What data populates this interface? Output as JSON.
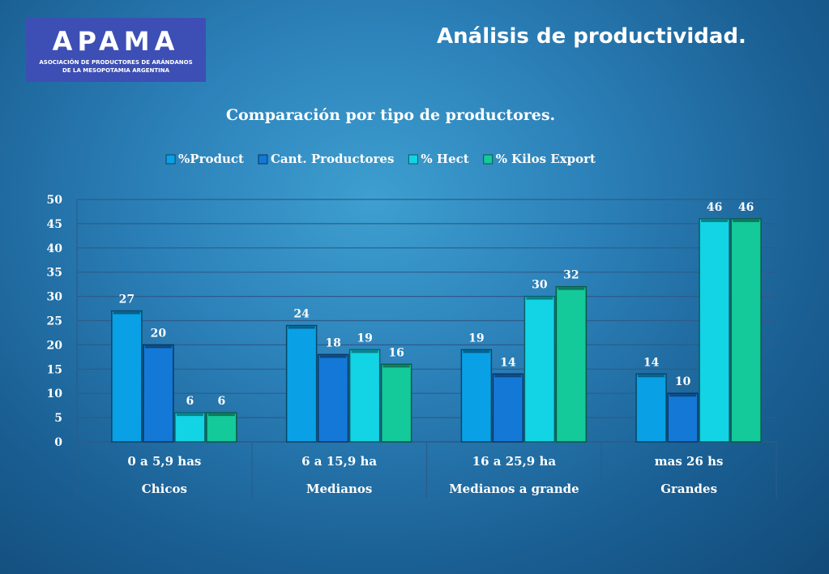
{
  "logo": {
    "word": "APAMA",
    "subtitle_line1": "ASOCIACIÓN DE PRODUCTORES DE ARÁNDANOS",
    "subtitle_line2": "DE LA MESOPOTAMIA ARGENTINA"
  },
  "page_title": "Análisis de productividad.",
  "chart_data": {
    "type": "bar",
    "title": "Comparación por tipo de productores.",
    "categories": [
      "0 a 5,9 has",
      "6 a 15,9 ha",
      "16 a 25,9 ha",
      "mas 26 hs"
    ],
    "category_groups": [
      "Chicos",
      "Medianos",
      "Medianos a grande",
      "Grandes"
    ],
    "series": [
      {
        "name": "%Product",
        "values": [
          27,
          24,
          19,
          14
        ],
        "color": "#0aa0e6"
      },
      {
        "name": "Cant. Productores",
        "values": [
          20,
          18,
          14,
          10
        ],
        "color": "#1478d6"
      },
      {
        "name": "% Hect",
        "values": [
          6,
          19,
          30,
          46
        ],
        "color": "#12d4e4"
      },
      {
        "name": "% Kilos Export",
        "values": [
          6,
          16,
          32,
          46
        ],
        "color": "#14c99a"
      }
    ],
    "ylim": [
      0,
      50
    ],
    "yticks": [
      0,
      5,
      10,
      15,
      20,
      25,
      30,
      35,
      40,
      45,
      50
    ],
    "grid": true,
    "legend": "top"
  }
}
